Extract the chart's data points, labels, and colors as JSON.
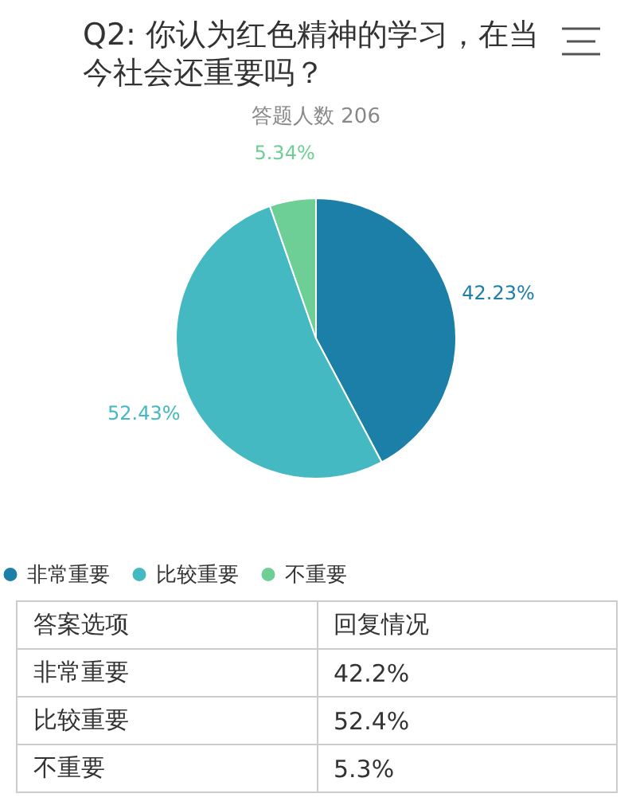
{
  "chart_data": {
    "type": "pie",
    "title": "Q2: 你认为红色精神的学习，在当今社会还重要吗？",
    "subtitle": "答题人数 206",
    "categories": [
      "非常重要",
      "比较重要",
      "不重要"
    ],
    "values": [
      42.23,
      52.43,
      5.34
    ],
    "value_labels": [
      "42.23%",
      "52.43%",
      "5.34%"
    ],
    "colors": [
      "#1b7fa8",
      "#45b9c1",
      "#6dcf96"
    ],
    "legend": "bottom",
    "annotations": [
      "答案选项",
      "回复情况",
      "42.2%",
      "52.4%",
      "5.3%"
    ]
  }
}
